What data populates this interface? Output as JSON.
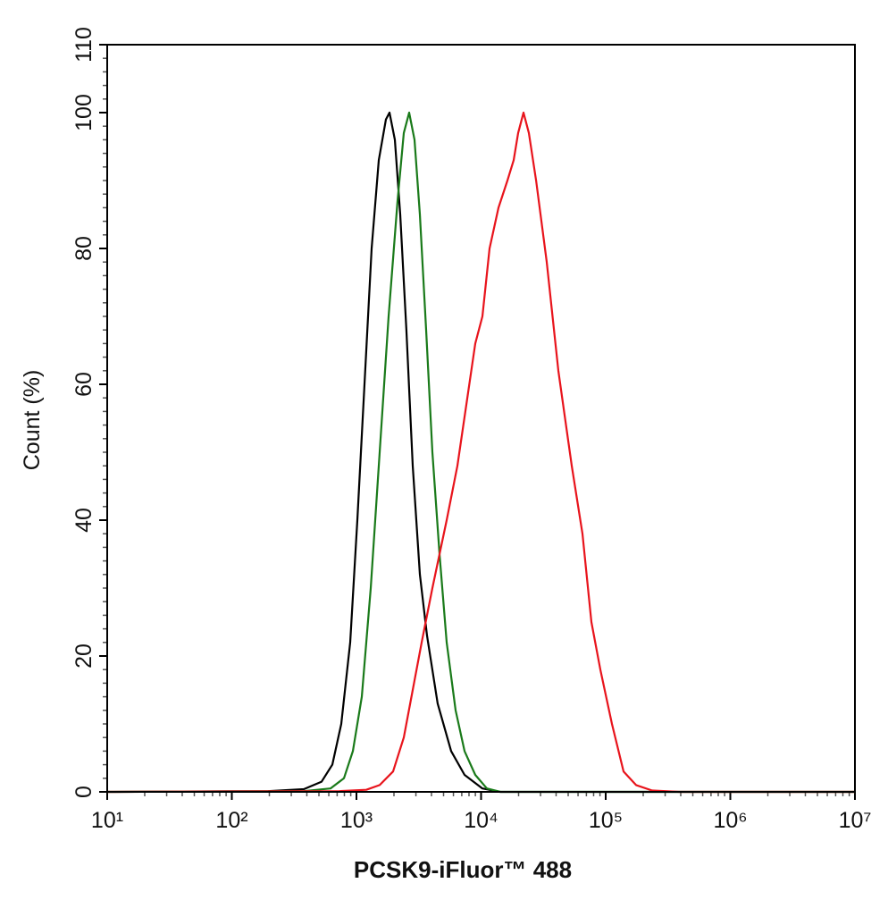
{
  "chart_data": {
    "type": "line",
    "xlabel": "PCSK9-iFluor™ 488",
    "ylabel": "Count  (%)",
    "xscale": "log",
    "xlim": [
      10,
      10000000
    ],
    "xticks": [
      {
        "value": 10,
        "label": "10¹"
      },
      {
        "value": 100,
        "label": "10²"
      },
      {
        "value": 1000,
        "label": "10³"
      },
      {
        "value": 10000,
        "label": "10⁴"
      },
      {
        "value": 100000,
        "label": "10⁵"
      },
      {
        "value": 1000000,
        "label": "10⁶"
      },
      {
        "value": 10000000,
        "label": "10⁷"
      }
    ],
    "ylim": [
      0,
      110
    ],
    "yticks": [
      0,
      20,
      40,
      60,
      80,
      100,
      110
    ],
    "grid": false,
    "series": [
      {
        "color": "#000000",
        "x": [
          10,
          195,
          378,
          525,
          640,
          755,
          891,
          1016,
          1161,
          1324,
          1511,
          1725,
          1841,
          2032,
          2244,
          2518,
          2830,
          3228,
          3684,
          4487,
          5751,
          7365,
          10250,
          14260,
          10000000
        ],
        "values": [
          0,
          0.1,
          0.4,
          1.5,
          4,
          10,
          22,
          40,
          60,
          80,
          93,
          99,
          100,
          96,
          85,
          68,
          48,
          32,
          23,
          13,
          6,
          2.5,
          0.5,
          0,
          0
        ]
      },
      {
        "color": "#1a7a1a",
        "x": [
          10,
          378,
          619,
          794,
          936,
          1104,
          1302,
          1535,
          1811,
          2136,
          2399,
          2649,
          2924,
          3228,
          3624,
          4067,
          4642,
          5297,
          6249,
          7365,
          8977,
          11130,
          14260,
          10000000
        ],
        "values": [
          0,
          0.1,
          0.5,
          2,
          6,
          14,
          30,
          50,
          70,
          87,
          97,
          100,
          96,
          85,
          68,
          50,
          35,
          22,
          12,
          6,
          2.5,
          0.5,
          0,
          0
        ]
      },
      {
        "color": "#e8141c",
        "x": [
          10,
          731,
          1199,
          1535,
          1967,
          2399,
          2830,
          3337,
          4067,
          5297,
          6457,
          7621,
          8977,
          10250,
          11700,
          13800,
          16260,
          18260,
          19830,
          21910,
          24200,
          27620,
          33650,
          41690,
          53440,
          65140,
          76770,
          90590,
          112200,
          139100,
          175200,
          236000,
          387000,
          10000000
        ],
        "values": [
          0,
          0.1,
          0.3,
          1,
          3,
          8,
          15,
          22,
          30,
          40,
          48,
          57,
          66,
          70,
          80,
          86,
          90,
          93,
          97,
          100,
          97,
          90,
          78,
          62,
          48,
          38,
          25,
          18,
          10,
          3,
          1,
          0.2,
          0,
          0
        ]
      }
    ]
  }
}
